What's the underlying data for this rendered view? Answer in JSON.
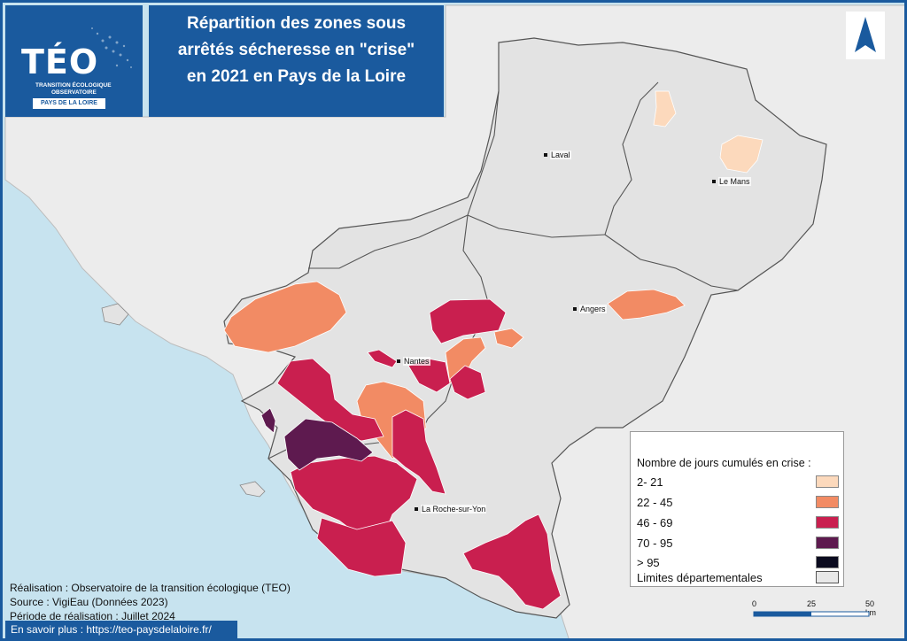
{
  "logo": {
    "title": "TÉO",
    "subtitle_line1": "TRANSITION ÉCOLOGIQUE",
    "subtitle_line2": "OBSERVATOIRE",
    "badge": "PAYS DE LA LOIRE"
  },
  "map_title": "Répartition des zones sous arrêtés sécheresse en \"crise\" en 2021 en Pays de la Loire",
  "places": [
    {
      "name": "Laval"
    },
    {
      "name": "Le Mans"
    },
    {
      "name": "Angers"
    },
    {
      "name": "Nantes"
    },
    {
      "name": "La Roche-sur-Yon"
    }
  ],
  "legend": {
    "title": "Nombre de jours cumulés en crise :",
    "classes": [
      {
        "label": "2- 21",
        "color": "#fcd9bc"
      },
      {
        "label": "22 - 45",
        "color": "#f28b64"
      },
      {
        "label": "46 - 69",
        "color": "#c91f4f"
      },
      {
        "label": "70 - 95",
        "color": "#5e1a4f"
      },
      {
        "label": "> 95",
        "color": "#0b0b1f"
      }
    ],
    "boundary_label": "Limites départementales",
    "boundary_color": "#e8e8e8"
  },
  "scale": {
    "ticks": [
      "0",
      "25",
      "50 km"
    ]
  },
  "credits": {
    "line1": "Réalisation : Observatoire de la transition écologique (TEO)",
    "line2": "Source : VigiEau (Données 2023)",
    "line3": "Période de réalisation : Juillet 2024"
  },
  "footer_link": "En savoir plus : https://teo-paysdelaloire.fr/",
  "colors": {
    "sea": "#c7e3ef",
    "land": "#e3e3e3",
    "frame": "#1a5a9e"
  }
}
